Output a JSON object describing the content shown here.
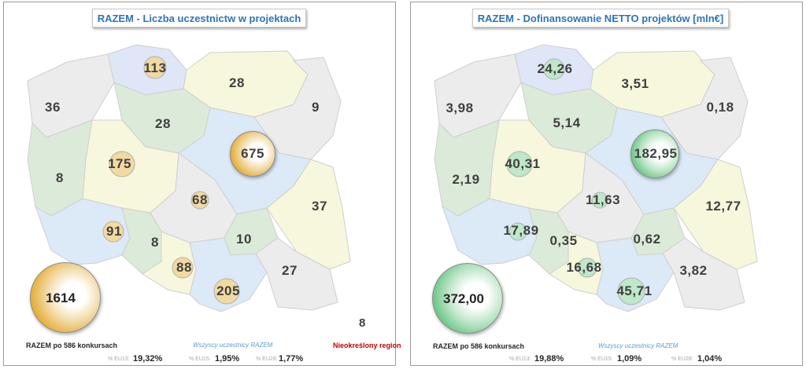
{
  "colors": {
    "title": "#2e74b5",
    "region_blue": "#dfe6f8",
    "region_lightblue": "#dce9f7",
    "region_green": "#dcebd9",
    "region_yellow": "#f6f7dc",
    "region_grey": "#ececec",
    "bubble_gold": "#e4a522",
    "bubble_green": "#5fc07d",
    "undefined_region": "#c00000"
  },
  "left": {
    "title": "RAZEM - Liczba uczestnictw w projektach",
    "regions": [
      {
        "id": "pomorskie",
        "value": "113"
      },
      {
        "id": "warminsko-mazurskie",
        "value": "28"
      },
      {
        "id": "zachodniopomorskie",
        "value": "36"
      },
      {
        "id": "kujawsko-pomorskie",
        "value": "28"
      },
      {
        "id": "podlaskie",
        "value": "9"
      },
      {
        "id": "lubuskie",
        "value": "8"
      },
      {
        "id": "wielkopolskie",
        "value": "175"
      },
      {
        "id": "mazowieckie",
        "value": "675"
      },
      {
        "id": "lodzkie",
        "value": "68"
      },
      {
        "id": "lubelskie",
        "value": "37"
      },
      {
        "id": "dolnoslaskie",
        "value": "91"
      },
      {
        "id": "opolskie",
        "value": "8"
      },
      {
        "id": "swietokrzyskie",
        "value": "10"
      },
      {
        "id": "slaskie",
        "value": "88"
      },
      {
        "id": "podkarpackie",
        "value": "27"
      },
      {
        "id": "malopolskie",
        "value": "205"
      }
    ],
    "total": "1614",
    "footer": {
      "label": "RAZEM po 586 konkursach",
      "all_participants": "Wszyscy uczestnicy RAZEM",
      "undefined_region": "Nieokreślony region",
      "undefined_value": "8",
      "eu13_label": "% EU13:",
      "eu13_value": "19,32%",
      "eu15_label": "% EU15:",
      "eu15_value": "1,95%",
      "eu28_label": "% EU28:",
      "eu28_value": "1,77%"
    }
  },
  "right": {
    "title": "RAZEM -  Dofinansowanie NETTO projektów [mln€]",
    "regions": [
      {
        "id": "pomorskie",
        "value": "24,26"
      },
      {
        "id": "warminsko-mazurskie",
        "value": "3,51"
      },
      {
        "id": "zachodniopomorskie",
        "value": "3,98"
      },
      {
        "id": "kujawsko-pomorskie",
        "value": "5,14"
      },
      {
        "id": "podlaskie",
        "value": "0,18"
      },
      {
        "id": "lubuskie",
        "value": "2,19"
      },
      {
        "id": "wielkopolskie",
        "value": "40,31"
      },
      {
        "id": "mazowieckie",
        "value": "182,95"
      },
      {
        "id": "lodzkie",
        "value": "11,63"
      },
      {
        "id": "lubelskie",
        "value": "12,77"
      },
      {
        "id": "dolnoslaskie",
        "value": "17,89"
      },
      {
        "id": "opolskie",
        "value": "0,35"
      },
      {
        "id": "swietokrzyskie",
        "value": "0,62"
      },
      {
        "id": "slaskie",
        "value": "16,68"
      },
      {
        "id": "podkarpackie",
        "value": "3,82"
      },
      {
        "id": "malopolskie",
        "value": "45,71"
      }
    ],
    "total": "372,00",
    "footer": {
      "label": "RAZEM po 586 konkursach",
      "all_participants": "Wszyscy uczestnicy RAZEM",
      "eu13_label": "% EU13:",
      "eu13_value": "19,88%",
      "eu15_label": "% EU15:",
      "eu15_value": "1,09%",
      "eu28_label": "% EU28:",
      "eu28_value": "1,04%"
    }
  }
}
